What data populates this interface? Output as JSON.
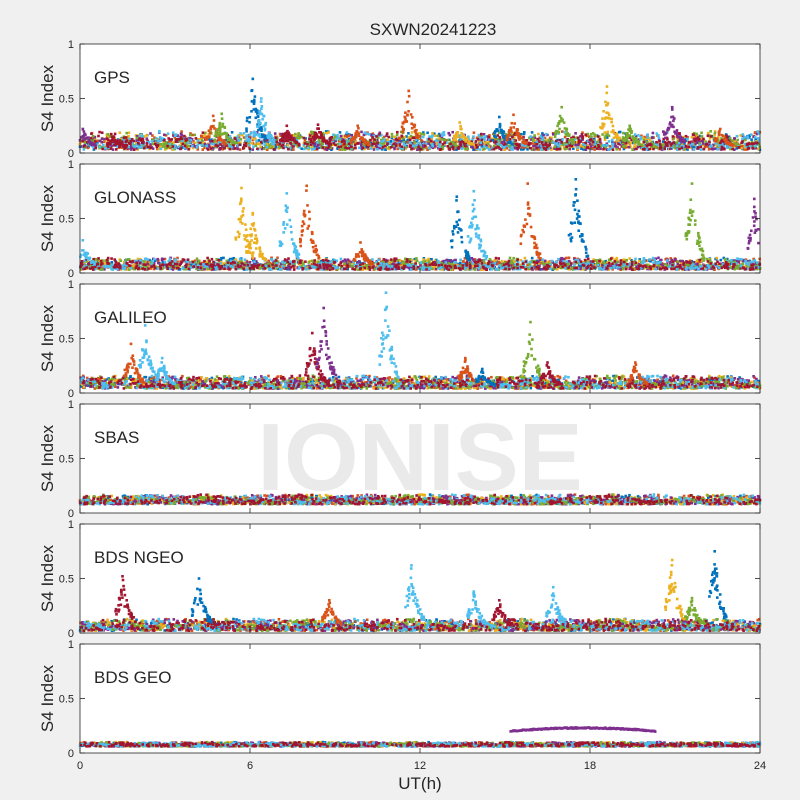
{
  "figure": {
    "title": "SXWN20241223",
    "watermark": "IONISE",
    "xlabel": "UT(h)",
    "ylabel": "S4 Index"
  },
  "colors": {
    "background": "#f0f0f0",
    "axes_bg": "#ffffff",
    "axis": "#262626",
    "watermark": "#e6e6e6",
    "series": [
      "#0072BD",
      "#D95319",
      "#EDB120",
      "#7E2F8E",
      "#77AC30",
      "#4DBEEE",
      "#A2142F"
    ]
  },
  "chart_data": [
    {
      "type": "scatter",
      "label": "GPS",
      "xlabel": "",
      "ylabel": "S4 Index",
      "xlim": [
        0,
        24
      ],
      "ylim": [
        0,
        1
      ],
      "yticks": [
        0,
        0.5,
        1
      ],
      "ytick_labels": [
        "0",
        "0.5",
        "1"
      ],
      "baseline": [
        0.03,
        0.2
      ],
      "spikes": [
        {
          "x": 0.1,
          "peak": 0.22,
          "color": 3
        },
        {
          "x": 1.2,
          "peak": 0.15,
          "color": 6
        },
        {
          "x": 4.7,
          "peak": 0.34,
          "color": 1
        },
        {
          "x": 5.0,
          "peak": 0.36,
          "color": 4
        },
        {
          "x": 6.1,
          "peak": 0.68,
          "color": 0
        },
        {
          "x": 6.4,
          "peak": 0.5,
          "color": 5
        },
        {
          "x": 7.3,
          "peak": 0.25,
          "color": 6
        },
        {
          "x": 8.4,
          "peak": 0.26,
          "color": 6
        },
        {
          "x": 9.8,
          "peak": 0.25,
          "color": 1
        },
        {
          "x": 11.6,
          "peak": 0.57,
          "color": 1
        },
        {
          "x": 13.4,
          "peak": 0.28,
          "color": 2
        },
        {
          "x": 14.8,
          "peak": 0.33,
          "color": 0
        },
        {
          "x": 15.3,
          "peak": 0.35,
          "color": 1
        },
        {
          "x": 17.0,
          "peak": 0.42,
          "color": 4
        },
        {
          "x": 18.6,
          "peak": 0.61,
          "color": 2
        },
        {
          "x": 19.4,
          "peak": 0.25,
          "color": 4
        },
        {
          "x": 20.9,
          "peak": 0.42,
          "color": 3
        },
        {
          "x": 22.6,
          "peak": 0.22,
          "color": 1
        }
      ]
    },
    {
      "type": "scatter",
      "label": "GLONASS",
      "xlabel": "",
      "ylabel": "S4 Index",
      "xlim": [
        0,
        24
      ],
      "ylim": [
        0,
        1
      ],
      "yticks": [
        0,
        0.5,
        1
      ],
      "ytick_labels": [
        "0",
        "0.5",
        "1"
      ],
      "baseline": [
        0.03,
        0.14
      ],
      "spikes": [
        {
          "x": 0.1,
          "peak": 0.3,
          "color": 5
        },
        {
          "x": 5.7,
          "peak": 0.78,
          "color": 2
        },
        {
          "x": 6.1,
          "peak": 0.55,
          "color": 2
        },
        {
          "x": 7.3,
          "peak": 0.73,
          "color": 5
        },
        {
          "x": 8.0,
          "peak": 0.8,
          "color": 1
        },
        {
          "x": 9.9,
          "peak": 0.28,
          "color": 1
        },
        {
          "x": 13.3,
          "peak": 0.7,
          "color": 0
        },
        {
          "x": 13.9,
          "peak": 0.75,
          "color": 5
        },
        {
          "x": 15.8,
          "peak": 0.82,
          "color": 1
        },
        {
          "x": 17.5,
          "peak": 0.86,
          "color": 0
        },
        {
          "x": 21.6,
          "peak": 0.82,
          "color": 4
        },
        {
          "x": 23.8,
          "peak": 0.68,
          "color": 3
        }
      ]
    },
    {
      "type": "scatter",
      "label": "GALILEO",
      "xlabel": "",
      "ylabel": "S4 Index",
      "xlim": [
        0,
        24
      ],
      "ylim": [
        0,
        1
      ],
      "yticks": [
        0,
        0.5,
        1
      ],
      "ytick_labels": [
        "0",
        "0.5",
        "1"
      ],
      "baseline": [
        0.04,
        0.16
      ],
      "spikes": [
        {
          "x": 1.8,
          "peak": 0.45,
          "color": 1
        },
        {
          "x": 2.3,
          "peak": 0.62,
          "color": 5
        },
        {
          "x": 2.9,
          "peak": 0.32,
          "color": 5
        },
        {
          "x": 8.2,
          "peak": 0.55,
          "color": 6
        },
        {
          "x": 8.6,
          "peak": 0.78,
          "color": 3
        },
        {
          "x": 10.8,
          "peak": 0.92,
          "color": 5
        },
        {
          "x": 13.6,
          "peak": 0.32,
          "color": 1
        },
        {
          "x": 14.2,
          "peak": 0.22,
          "color": 0
        },
        {
          "x": 15.9,
          "peak": 0.65,
          "color": 4
        },
        {
          "x": 16.5,
          "peak": 0.28,
          "color": 6
        },
        {
          "x": 19.6,
          "peak": 0.28,
          "color": 1
        }
      ]
    },
    {
      "type": "scatter",
      "label": "SBAS",
      "xlabel": "",
      "ylabel": "S4 Index",
      "xlim": [
        0,
        24
      ],
      "ylim": [
        0,
        1
      ],
      "yticks": [
        0,
        0.5,
        1
      ],
      "ytick_labels": [
        "0",
        "0.5",
        "1"
      ],
      "baseline": [
        0.08,
        0.17
      ],
      "spikes": []
    },
    {
      "type": "scatter",
      "label": "BDS NGEO",
      "xlabel": "",
      "ylabel": "S4 Index",
      "xlim": [
        0,
        24
      ],
      "ylim": [
        0,
        1
      ],
      "yticks": [
        0,
        0.5,
        1
      ],
      "ytick_labels": [
        "0",
        "0.5",
        "1"
      ],
      "baseline": [
        0.02,
        0.13
      ],
      "spikes": [
        {
          "x": 1.5,
          "peak": 0.52,
          "color": 6
        },
        {
          "x": 4.2,
          "peak": 0.5,
          "color": 0
        },
        {
          "x": 8.8,
          "peak": 0.3,
          "color": 1
        },
        {
          "x": 11.7,
          "peak": 0.62,
          "color": 5
        },
        {
          "x": 13.9,
          "peak": 0.38,
          "color": 5
        },
        {
          "x": 14.8,
          "peak": 0.3,
          "color": 6
        },
        {
          "x": 16.7,
          "peak": 0.42,
          "color": 5
        },
        {
          "x": 20.9,
          "peak": 0.67,
          "color": 2
        },
        {
          "x": 21.6,
          "peak": 0.32,
          "color": 4
        },
        {
          "x": 22.4,
          "peak": 0.75,
          "color": 0
        }
      ]
    },
    {
      "type": "scatter",
      "label": "BDS GEO",
      "xlabel": "UT(h)",
      "ylabel": "S4 Index",
      "xlim": [
        0,
        24
      ],
      "ylim": [
        0,
        1
      ],
      "yticks": [
        0,
        0.5,
        1
      ],
      "ytick_labels": [
        "0",
        "0.5",
        "1"
      ],
      "xticks": [
        0,
        6,
        12,
        18,
        24
      ],
      "xtick_labels": [
        "0",
        "6",
        "12",
        "18",
        "24"
      ],
      "baseline": [
        0.06,
        0.1
      ],
      "arc": {
        "x_start": 15.2,
        "x_end": 20.3,
        "y": 0.23,
        "color": 3
      },
      "spikes": []
    }
  ]
}
